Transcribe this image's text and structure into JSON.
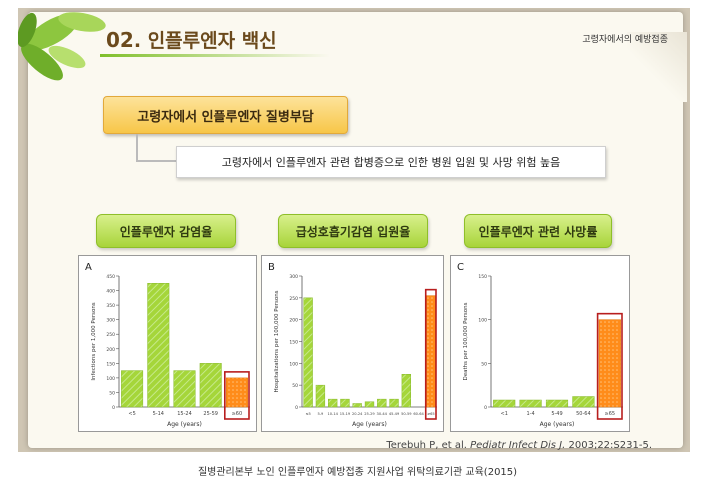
{
  "slide": {
    "number": "02",
    "title": "인플루엔자 백신",
    "corner_label": "고령자에서의 예방접종",
    "header_box": "고령자에서 인플루엔자 질병부담",
    "description": "고령자에서 인플루엔자 관련 합병증으로 인한 병원 입원 및 사망 위험 높음",
    "pills": [
      "인플루엔자 감염율",
      "급성호흡기감염 입원율",
      "인플루엔자 관련 사망률"
    ],
    "citation_authors": "Terebuh P, et al.",
    "citation_journal": "Pediatr Infect Dis J.",
    "citation_ref": "2003;22:S231-5."
  },
  "caption": "질병관리본부 노인 인플루엔자 예방접종 지원사업 위탁의료기관 교육(2015)",
  "colors": {
    "bar_green": "#a5d63a",
    "bar_orange": "#ff8c1a",
    "highlight_border": "#b81e1e"
  },
  "chart_data": [
    {
      "type": "bar",
      "panel": "A",
      "categories": [
        "<5",
        "5-14",
        "15-24",
        "25-59",
        "≥60"
      ],
      "values": [
        125,
        425,
        125,
        150,
        100
      ],
      "highlight_index": 4,
      "ylabel": "Infections per 1,000 Persons",
      "xlabel": "Age (years)",
      "ylim": [
        0,
        450
      ],
      "yticks": [
        0,
        50,
        100,
        150,
        200,
        250,
        300,
        350,
        400,
        450
      ]
    },
    {
      "type": "bar",
      "panel": "B",
      "categories": [
        "≤5",
        "5-9",
        "10-14",
        "15-19",
        "20-24",
        "25-29",
        "30-44",
        "45-49",
        "50-59",
        "60-64",
        "≥65"
      ],
      "values": [
        250,
        50,
        18,
        18,
        8,
        12,
        18,
        18,
        75,
        0,
        255
      ],
      "highlight_index": 10,
      "ylabel": "Hospitalizations per 100,000 Persons",
      "xlabel": "Age (years)",
      "ylim": [
        0,
        300
      ],
      "yticks": [
        0,
        50,
        100,
        150,
        200,
        250,
        300
      ]
    },
    {
      "type": "bar",
      "panel": "C",
      "categories": [
        "<1",
        "1-4",
        "5-49",
        "50-64",
        "≥65"
      ],
      "values": [
        8,
        8,
        8,
        12,
        100
      ],
      "highlight_index": 4,
      "ylabel": "Deaths per 100,000 Persons",
      "xlabel": "Age (years)",
      "ylim": [
        0,
        150
      ],
      "yticks": [
        0,
        50,
        100,
        150
      ]
    }
  ]
}
